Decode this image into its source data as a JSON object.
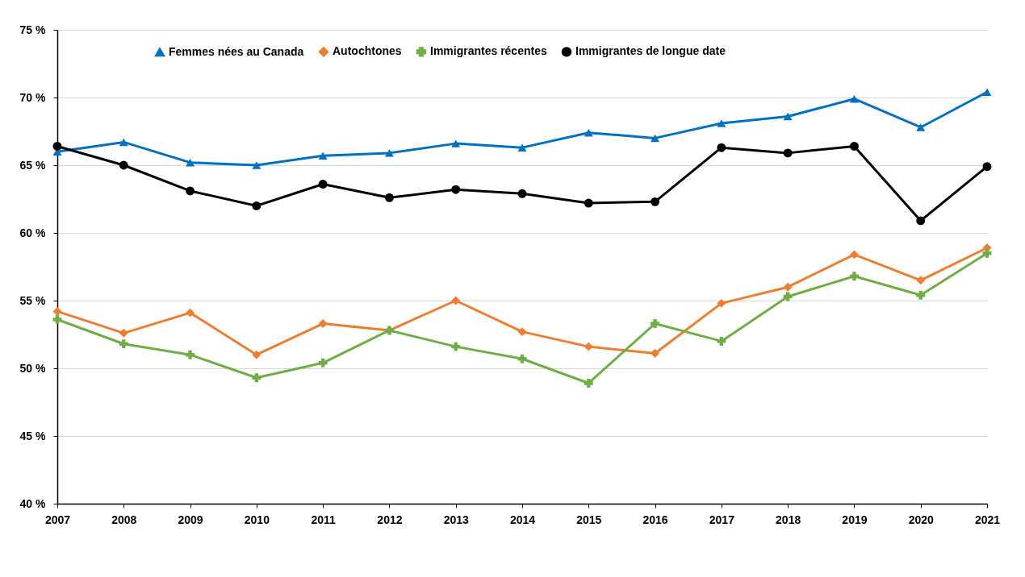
{
  "chart_data": {
    "type": "line",
    "categories": [
      "2007",
      "2008",
      "2009",
      "2010",
      "2011",
      "2012",
      "2013",
      "2014",
      "2015",
      "2016",
      "2017",
      "2018",
      "2019",
      "2020",
      "2021"
    ],
    "series": [
      {
        "name": "Femmes nées au Canada",
        "color": "#0070c0",
        "marker": "triangle",
        "values": [
          66.0,
          66.7,
          65.2,
          65.0,
          65.7,
          65.9,
          66.6,
          66.3,
          67.4,
          67.0,
          68.1,
          68.6,
          69.9,
          67.8,
          70.4
        ]
      },
      {
        "name": "Autochtones",
        "color": "#ed7d31",
        "marker": "diamond",
        "values": [
          54.2,
          52.6,
          54.1,
          51.0,
          53.3,
          52.8,
          55.0,
          52.7,
          51.6,
          51.1,
          54.8,
          56.0,
          58.4,
          56.5,
          58.9
        ]
      },
      {
        "name": "Immigrantes récentes",
        "color": "#70ad47",
        "marker": "cross",
        "values": [
          53.6,
          51.8,
          51.0,
          49.3,
          50.4,
          52.8,
          51.6,
          50.7,
          48.9,
          53.3,
          52.0,
          55.3,
          56.8,
          55.4,
          58.5
        ]
      },
      {
        "name": "Immigrantes de longue date",
        "color": "#000000",
        "marker": "circle",
        "values": [
          66.4,
          65.0,
          63.1,
          62.0,
          63.6,
          62.6,
          63.2,
          62.9,
          62.2,
          62.3,
          66.3,
          65.9,
          66.4,
          60.9,
          64.9
        ]
      }
    ],
    "ylim": [
      40,
      75
    ],
    "yticks": [
      {
        "value": 40,
        "label": "40 %"
      },
      {
        "value": 45,
        "label": "45 %"
      },
      {
        "value": 50,
        "label": "50 %"
      },
      {
        "value": 55,
        "label": "55 %"
      },
      {
        "value": 60,
        "label": "60 %"
      },
      {
        "value": 65,
        "label": "65 %"
      },
      {
        "value": 70,
        "label": "70 %"
      },
      {
        "value": 75,
        "label": "75 %"
      }
    ],
    "grid": "y",
    "legend": "top",
    "line_style": "solid"
  }
}
